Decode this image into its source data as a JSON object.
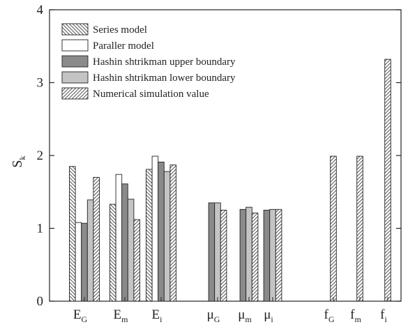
{
  "chart_data": {
    "type": "bar",
    "title": "",
    "xlabel": "",
    "ylabel": {
      "main": "S",
      "sub": "k"
    },
    "ylim": [
      0,
      4
    ],
    "yticks": [
      0,
      1,
      2,
      3,
      4
    ],
    "grid": false,
    "legend_position": "top-left",
    "categories": [
      {
        "main": "E",
        "sub": "G"
      },
      {
        "main": "E",
        "sub": "m"
      },
      {
        "main": "E",
        "sub": "i"
      },
      {
        "main": "μ",
        "sub": "G"
      },
      {
        "main": "μ",
        "sub": "m"
      },
      {
        "main": "μ",
        "sub": "i"
      },
      {
        "main": "f",
        "sub": "G"
      },
      {
        "main": "f",
        "sub": "m"
      },
      {
        "main": "f",
        "sub": "i"
      }
    ],
    "series": [
      {
        "name": "Series model",
        "pattern": "hatch-back",
        "values": [
          1.85,
          1.33,
          1.81,
          null,
          null,
          null,
          null,
          null,
          null
        ]
      },
      {
        "name": "Paraller model",
        "pattern": "white",
        "values": [
          1.08,
          1.74,
          1.99,
          null,
          null,
          null,
          null,
          null,
          null
        ]
      },
      {
        "name": "Hashin shtrikman upper boundary",
        "pattern": "dark-gray",
        "values": [
          1.07,
          1.61,
          1.91,
          1.35,
          1.26,
          1.25,
          null,
          null,
          null
        ]
      },
      {
        "name": "Hashin shtrikman lower boundary",
        "pattern": "light-gray",
        "values": [
          1.39,
          1.4,
          1.78,
          1.35,
          1.29,
          1.26,
          null,
          null,
          null
        ]
      },
      {
        "name": "Numerical simulation value",
        "pattern": "hatch-fwd",
        "values": [
          1.7,
          1.12,
          1.87,
          1.25,
          1.21,
          1.26,
          1.99,
          1.99,
          3.32
        ]
      }
    ]
  },
  "colors": {
    "axis": "#222222",
    "dark_gray": "#8a8a8a",
    "light_gray": "#c4c4c4",
    "white": "#ffffff",
    "hatch": "#555555"
  }
}
